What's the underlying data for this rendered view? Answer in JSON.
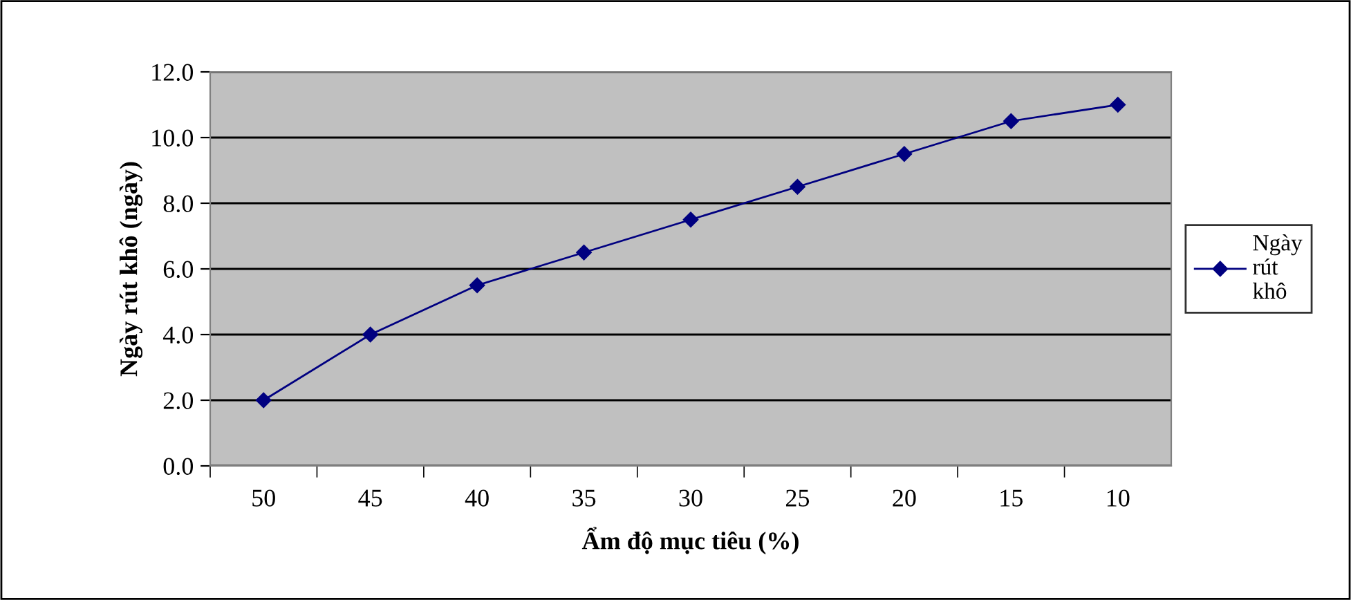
{
  "chart_data": {
    "type": "line",
    "xlabel": "Ẩm độ mục tiêu (%)",
    "ylabel": "Ngày rút khô (ngày)",
    "categories": [
      "50",
      "45",
      "40",
      "35",
      "30",
      "25",
      "20",
      "15",
      "10"
    ],
    "series": [
      {
        "name": "Ngày rút khô",
        "color": "#000080",
        "values": [
          2.0,
          4.0,
          5.5,
          6.5,
          7.5,
          8.5,
          9.5,
          10.5,
          11.0
        ]
      }
    ],
    "ylim": [
      0,
      12
    ],
    "yticks": [
      {
        "value": 0,
        "label": "0.0"
      },
      {
        "value": 2,
        "label": "2.0"
      },
      {
        "value": 4,
        "label": "4.0"
      },
      {
        "value": 6,
        "label": "6.0"
      },
      {
        "value": 8,
        "label": "8.0"
      },
      {
        "value": 10,
        "label": "10.0"
      },
      {
        "value": 12,
        "label": "12.0"
      }
    ],
    "grid": "y",
    "legend": "right",
    "marker": "diamond",
    "line_style": "solid"
  }
}
